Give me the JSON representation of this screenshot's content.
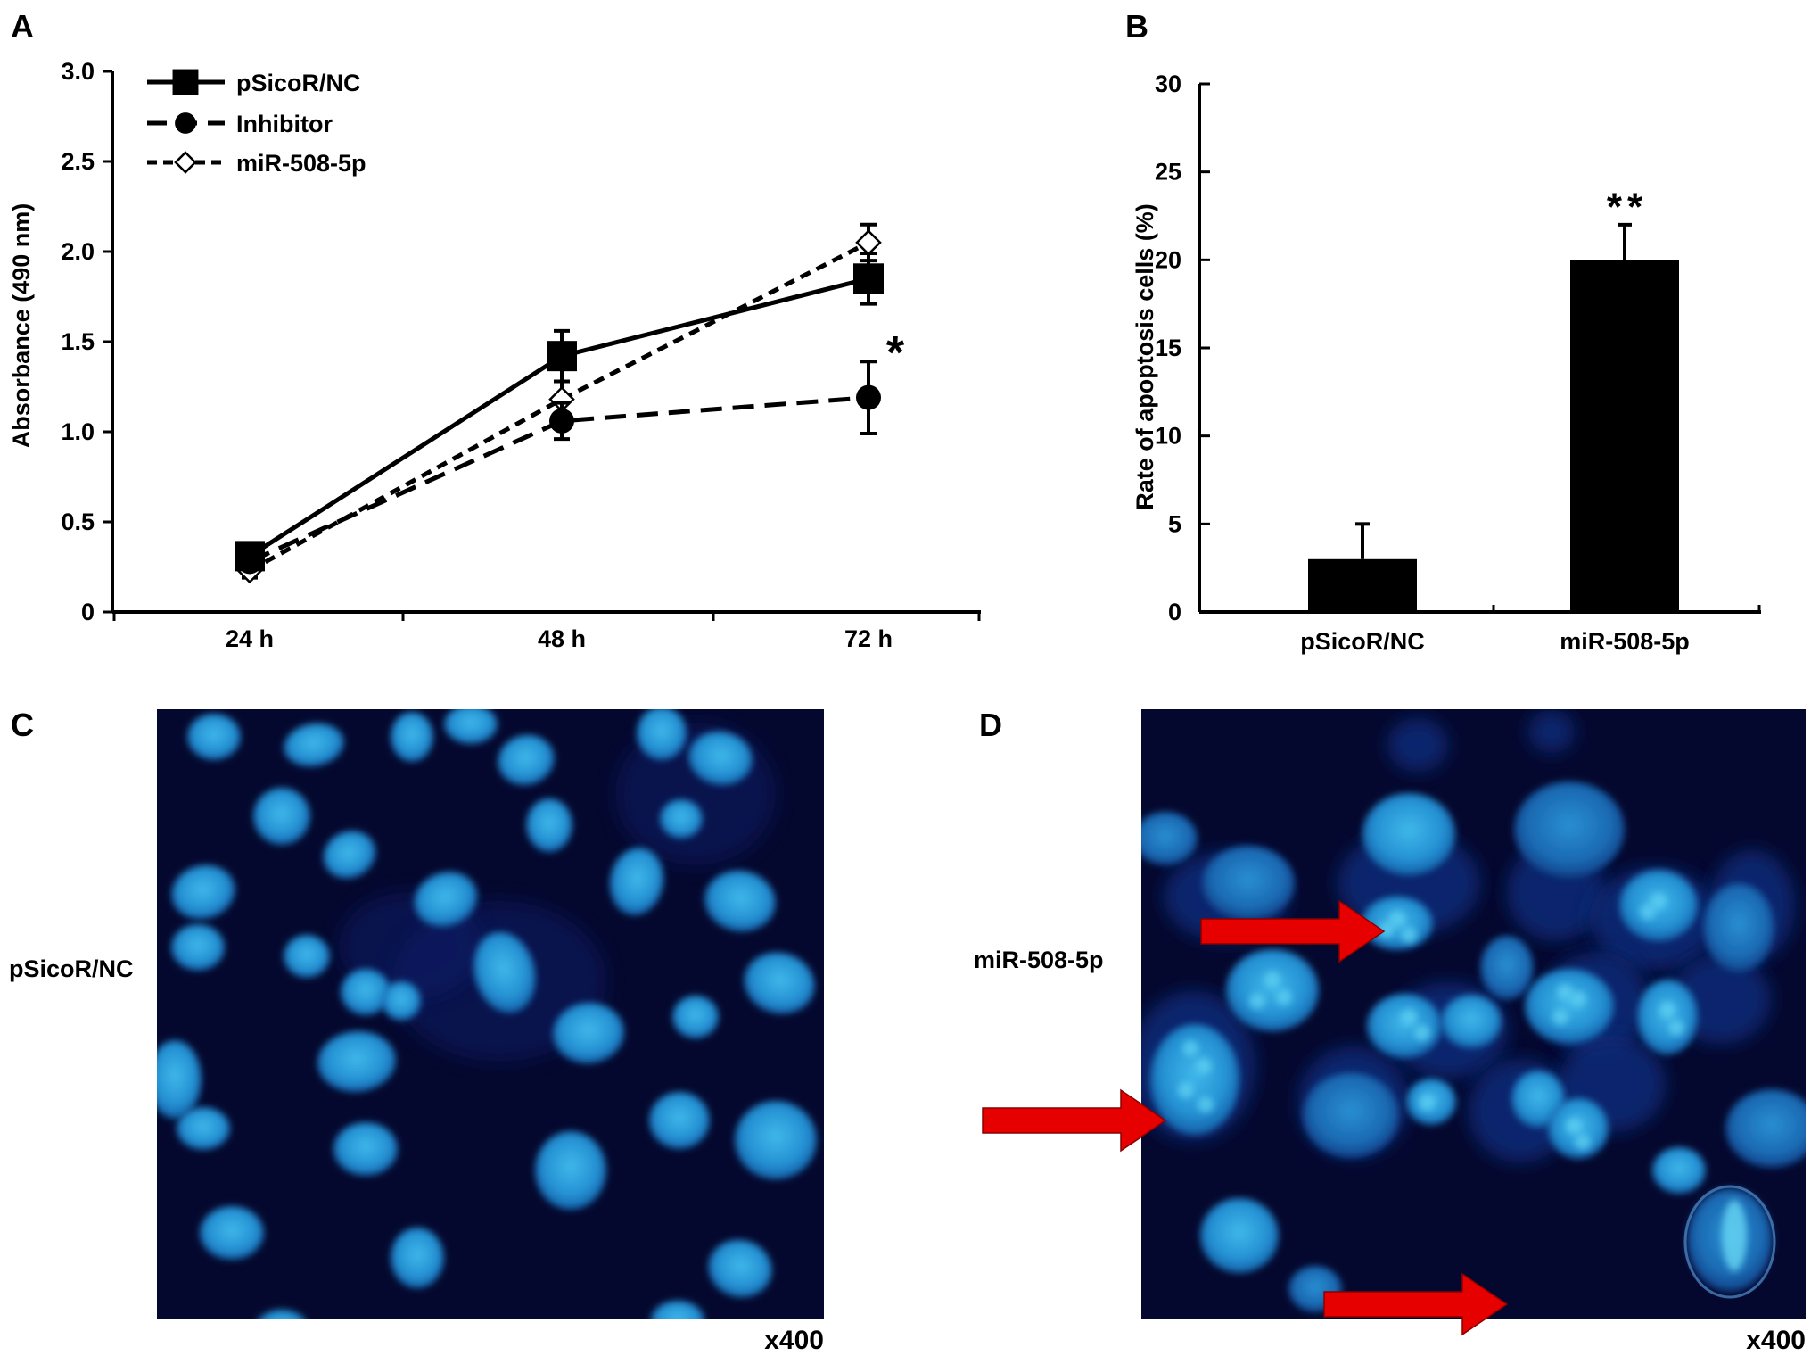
{
  "panels": {
    "A": "A",
    "B": "B",
    "C": "C",
    "D": "D"
  },
  "chart_data": [
    {
      "panel": "A",
      "type": "line",
      "xlabel": "",
      "ylabel": "Absorbance (490 nm)",
      "categories": [
        "24 h",
        "48 h",
        "72 h"
      ],
      "ylim": [
        0,
        3.0
      ],
      "yticks": [
        0,
        0.5,
        1.0,
        1.5,
        2.0,
        2.5,
        3.0
      ],
      "ytick_labels": [
        "0",
        "0.5",
        "1.0",
        "1.5",
        "2.0",
        "2.5",
        "3.0"
      ],
      "grid": false,
      "legend": "top-left",
      "series": [
        {
          "name": "pSicoR/NC",
          "values": [
            0.31,
            1.42,
            1.85
          ],
          "errors": [
            0.05,
            0.14,
            0.14
          ],
          "style": "solid",
          "marker": "square"
        },
        {
          "name": "Inhibitor",
          "values": [
            0.28,
            1.06,
            1.19
          ],
          "errors": [
            0.04,
            0.1,
            0.2
          ],
          "style": "dashed",
          "marker": "circle"
        },
        {
          "name": "miR-508-5p",
          "values": [
            0.23,
            1.18,
            2.05
          ],
          "errors": [
            0.04,
            0.1,
            0.1
          ],
          "style": "dotted",
          "marker": "diamond-open"
        }
      ],
      "annotations": [
        {
          "text": "*",
          "x": "72 h",
          "y": 1.45
        }
      ]
    },
    {
      "panel": "B",
      "type": "bar",
      "xlabel": "",
      "ylabel": "Rate of apoptosis cells (%)",
      "categories": [
        "pSicoR/NC",
        "miR-508-5p"
      ],
      "values": [
        3,
        20
      ],
      "errors": [
        2,
        2
      ],
      "ylim": [
        0,
        30
      ],
      "yticks": [
        0,
        5,
        10,
        15,
        20,
        25,
        30
      ],
      "ytick_labels": [
        "0",
        "5",
        "10",
        "15",
        "20",
        "25",
        "30"
      ],
      "grid": false,
      "bar_color": "#000000",
      "annotations": [
        {
          "text": "**",
          "category": "miR-508-5p",
          "y": 23.8
        }
      ]
    }
  ],
  "micrographs": {
    "C": {
      "label": "pSicoR/NC",
      "magnification": "x400"
    },
    "D": {
      "label": "miR-508-5p",
      "magnification": "x400",
      "arrow_color": "#e60000"
    }
  },
  "colors": {
    "background": "#ffffff",
    "ink": "#000000",
    "micrograph_bg": "#05082e",
    "nucleus": "#1e86c8",
    "nucleus_bright": "#39b4e6"
  }
}
